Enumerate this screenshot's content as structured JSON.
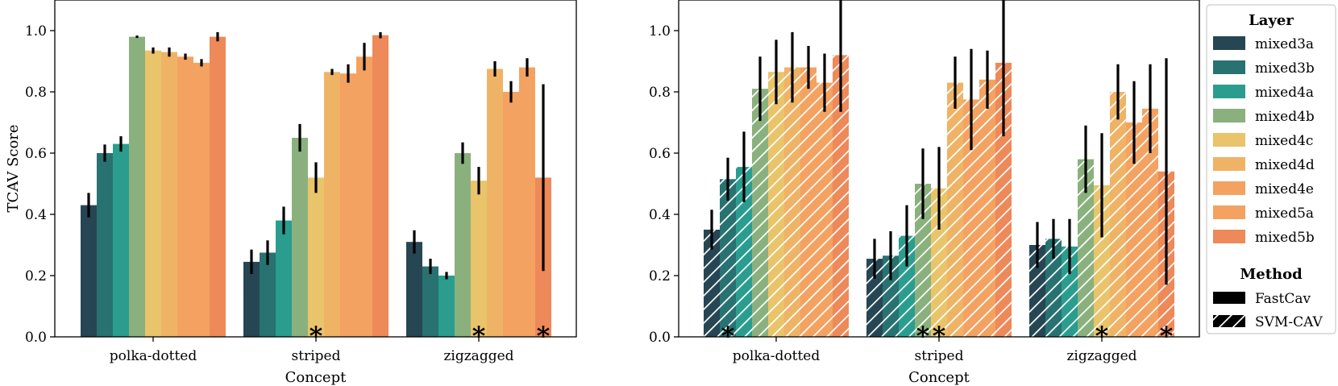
{
  "legend": {
    "layer_title": "Layer",
    "method_title": "Method",
    "methods": [
      {
        "name": "FastCav",
        "pattern": "solid"
      },
      {
        "name": "SVM-CAV",
        "pattern": "hatched"
      }
    ]
  },
  "chart_data": [
    {
      "type": "bar",
      "method": "FastCav",
      "title": "",
      "xlabel": "Concept",
      "ylabel": "TCAV Score",
      "ylim": [
        0,
        1.1
      ],
      "yticks": [
        "0.0",
        "0.2",
        "0.4",
        "0.6",
        "0.8",
        "1.0"
      ],
      "categories": [
        "polka-dotted",
        "striped",
        "zigzagged"
      ],
      "series": [
        {
          "name": "mixed3a",
          "color": "#264653",
          "values": [
            0.43,
            0.245,
            0.31
          ],
          "errors": [
            0.04,
            0.04,
            0.038
          ]
        },
        {
          "name": "mixed3b",
          "color": "#287271",
          "values": [
            0.6,
            0.275,
            0.23
          ],
          "errors": [
            0.028,
            0.04,
            0.025
          ]
        },
        {
          "name": "mixed4a",
          "color": "#2a9d8f",
          "values": [
            0.63,
            0.38,
            0.2
          ],
          "errors": [
            0.025,
            0.045,
            0.012
          ]
        },
        {
          "name": "mixed4b",
          "color": "#8ab17d",
          "values": [
            0.98,
            0.65,
            0.6
          ],
          "errors": [
            0.004,
            0.045,
            0.035
          ]
        },
        {
          "name": "mixed4c",
          "color": "#e9c46a",
          "values": [
            0.935,
            0.52,
            0.51
          ],
          "errors": [
            0.01,
            0.05,
            0.045
          ]
        },
        {
          "name": "mixed4d",
          "color": "#efb366",
          "values": [
            0.93,
            0.865,
            0.875
          ],
          "errors": [
            0.015,
            0.01,
            0.025
          ]
        },
        {
          "name": "mixed4e",
          "color": "#f4a261",
          "values": [
            0.915,
            0.86,
            0.8
          ],
          "errors": [
            0.01,
            0.03,
            0.035
          ]
        },
        {
          "name": "mixed5a",
          "color": "#f4a261",
          "values": [
            0.895,
            0.915,
            0.88
          ],
          "errors": [
            0.012,
            0.045,
            0.03
          ]
        },
        {
          "name": "mixed5b",
          "color": "#ee8959",
          "values": [
            0.98,
            0.985,
            0.52
          ],
          "errors": [
            0.015,
            0.01,
            0.305
          ]
        }
      ],
      "annotations": [
        {
          "category": "striped",
          "series": "mixed4c",
          "text": "*"
        },
        {
          "category": "zigzagged",
          "series": "mixed4c",
          "text": "*"
        },
        {
          "category": "zigzagged",
          "series": "mixed5b",
          "text": "*"
        }
      ]
    },
    {
      "type": "bar",
      "method": "SVM-CAV",
      "title": "",
      "xlabel": "Concept",
      "ylabel": "",
      "ylim": [
        0,
        1.1
      ],
      "yticks": [
        "0.0",
        "0.2",
        "0.4",
        "0.6",
        "0.8",
        "1.0"
      ],
      "categories": [
        "polka-dotted",
        "striped",
        "zigzagged"
      ],
      "series": [
        {
          "name": "mixed3a",
          "color": "#264653",
          "values": [
            0.35,
            0.255,
            0.3
          ],
          "errors": [
            0.065,
            0.065,
            0.075
          ]
        },
        {
          "name": "mixed3b",
          "color": "#287271",
          "values": [
            0.515,
            0.265,
            0.32
          ],
          "errors": [
            0.07,
            0.08,
            0.065
          ]
        },
        {
          "name": "mixed4a",
          "color": "#2a9d8f",
          "values": [
            0.555,
            0.33,
            0.295
          ],
          "errors": [
            0.115,
            0.1,
            0.09
          ]
        },
        {
          "name": "mixed4b",
          "color": "#8ab17d",
          "values": [
            0.81,
            0.5,
            0.58
          ],
          "errors": [
            0.105,
            0.115,
            0.11
          ]
        },
        {
          "name": "mixed4c",
          "color": "#e9c46a",
          "values": [
            0.865,
            0.485,
            0.495
          ],
          "errors": [
            0.105,
            0.135,
            0.17
          ]
        },
        {
          "name": "mixed4d",
          "color": "#efb366",
          "values": [
            0.88,
            0.83,
            0.8
          ],
          "errors": [
            0.115,
            0.085,
            0.09
          ]
        },
        {
          "name": "mixed4e",
          "color": "#f4a261",
          "values": [
            0.88,
            0.775,
            0.7
          ],
          "errors": [
            0.07,
            0.165,
            0.135
          ]
        },
        {
          "name": "mixed5a",
          "color": "#f4a261",
          "values": [
            0.83,
            0.84,
            0.745
          ],
          "errors": [
            0.095,
            0.095,
            0.145
          ]
        },
        {
          "name": "mixed5b",
          "color": "#ee8959",
          "values": [
            0.92,
            0.895,
            0.54
          ],
          "errors": [
            0.185,
            0.24,
            0.37
          ]
        }
      ],
      "annotations": [
        {
          "category": "polka-dotted",
          "series": "mixed3b",
          "text": "*"
        },
        {
          "category": "striped",
          "series": "mixed4b",
          "text": "*"
        },
        {
          "category": "striped",
          "series": "mixed4c",
          "text": "*"
        },
        {
          "category": "zigzagged",
          "series": "mixed4c",
          "text": "*"
        },
        {
          "category": "zigzagged",
          "series": "mixed5b",
          "text": "*"
        }
      ]
    }
  ]
}
